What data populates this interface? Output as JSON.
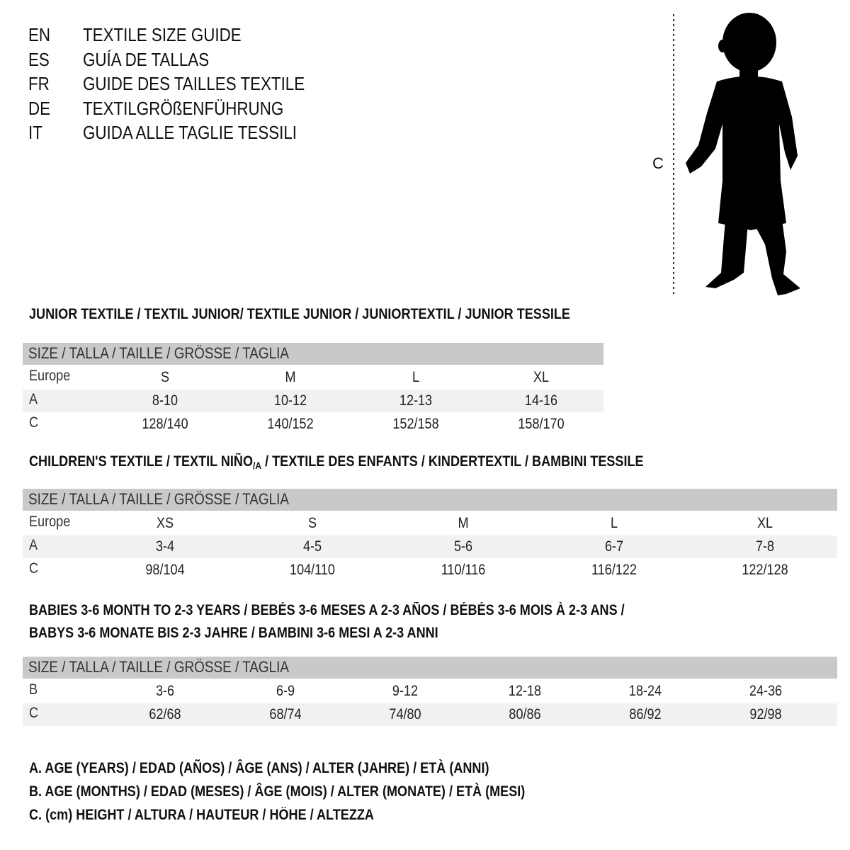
{
  "title_lines": [
    {
      "code": "EN",
      "text": "TEXTILE SIZE GUIDE"
    },
    {
      "code": "ES",
      "text": "GUÍA DE TALLAS"
    },
    {
      "code": "FR",
      "text": "GUIDE DES TAILLES TEXTILE"
    },
    {
      "code": "DE",
      "text": "TEXTILGRÖßENFÜHRUNG"
    },
    {
      "code": "IT",
      "text": "GUIDA ALLE TAGLIE TESSILI"
    }
  ],
  "figure": {
    "label": "C",
    "icon": "child-silhouette-icon"
  },
  "colors": {
    "header_bg": "#c9c9c9",
    "stripe_bg": "#f1f1f1"
  },
  "junior": {
    "title": "JUNIOR TEXTILE / TEXTIL JUNIOR/ TEXTILE JUNIOR / JUNIORTEXTIL / JUNIOR TESSILE",
    "header": "SIZE / TALLA / TAILLE / GRÖSSE / TAGLIA",
    "rows": [
      {
        "label": "Europe",
        "values": [
          "S",
          "M",
          "L",
          "XL"
        ]
      },
      {
        "label": "A",
        "values": [
          "8-10",
          "10-12",
          "12-13",
          "14-16"
        ]
      },
      {
        "label": "C",
        "values": [
          "128/140",
          "140/152",
          "152/158",
          "158/170"
        ]
      }
    ]
  },
  "children": {
    "title_a": "CHILDREN'S TEXTILE / TEXTIL NIÑO",
    "title_sub": "/A",
    "title_b": " / TEXTILE DES ENFANTS / KINDERTEXTIL / BAMBINI TESSILE",
    "header": "SIZE / TALLA / TAILLE / GRÖSSE / TAGLIA",
    "rows": [
      {
        "label": "Europe",
        "values": [
          "XS",
          "S",
          "M",
          "L",
          "XL"
        ]
      },
      {
        "label": "A",
        "values": [
          "3-4",
          "4-5",
          "5-6",
          "6-7",
          "7-8"
        ]
      },
      {
        "label": "C",
        "values": [
          "98/104",
          "104/110",
          "110/116",
          "116/122",
          "122/128"
        ]
      }
    ]
  },
  "babies": {
    "title_1": "BABIES 3-6 MONTH TO 2-3 YEARS / BEBÉS 3-6 MESES A 2-3 AÑOS / BÉBÉS 3-6 MOIS À 2-3 ANS /",
    "title_2": "BABYS 3-6 MONATE BIS 2-3 JAHRE / BAMBINI 3-6 MESI A 2-3 ANNI",
    "header": "SIZE / TALLA / TAILLE / GRÖSSE / TAGLIA",
    "rows": [
      {
        "label": "B",
        "values": [
          "3-6",
          "6-9",
          "9-12",
          "12-18",
          "18-24",
          "24-36"
        ]
      },
      {
        "label": "C",
        "values": [
          "62/68",
          "68/74",
          "74/80",
          "80/86",
          "86/92",
          "92/98"
        ]
      }
    ]
  },
  "legend": [
    "A. AGE (YEARS) / EDAD (AÑOS) / ÂGE (ANS) / ALTER (JAHRE) / ETÀ (ANNI)",
    "B. AGE (MONTHS) / EDAD (MESES) / ÂGE (MOIS) / ALTER (MONATE) / ETÀ (MESI)",
    "C. (cm) HEIGHT / ALTURA / HAUTEUR / HÖHE / ALTEZZA"
  ]
}
